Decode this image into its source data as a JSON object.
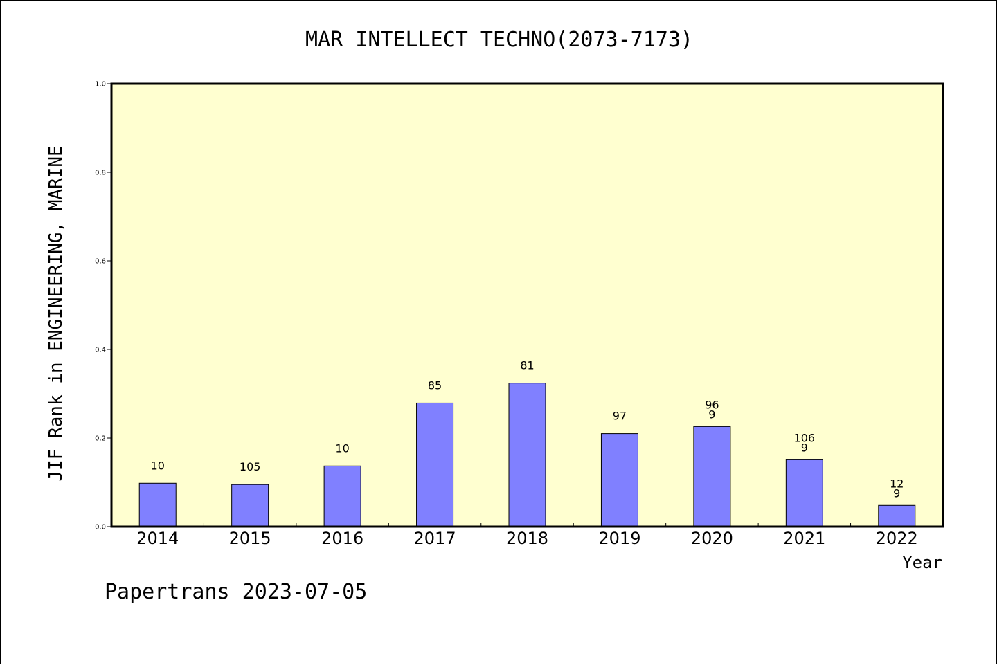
{
  "chart_data": {
    "type": "bar",
    "title": "MAR INTELLECT TECHNO(2073-7173)",
    "xlabel": "Year",
    "ylabel": "JIF Rank in ENGINEERING, MARINE",
    "categories": [
      "2014",
      "2015",
      "2016",
      "2017",
      "2018",
      "2019",
      "2020",
      "2021",
      "2022"
    ],
    "values": [
      0.098,
      0.095,
      0.137,
      0.279,
      0.324,
      0.21,
      0.226,
      0.151,
      0.048
    ],
    "data_labels": [
      [
        "10"
      ],
      [
        "105"
      ],
      [
        "10"
      ],
      [
        "85"
      ],
      [
        "81"
      ],
      [
        "97"
      ],
      [
        "96",
        "9"
      ],
      [
        "106",
        "9"
      ],
      [
        "12",
        "9"
      ]
    ],
    "ylim": [
      0,
      1.0
    ],
    "yticks": [
      "0.0",
      "0.2",
      "0.4",
      "0.6",
      "0.8",
      "1.0"
    ],
    "bar_color": "#8080ff",
    "plot_bg": "#ffffd0",
    "grid": false,
    "legend": "none"
  },
  "footer": "Papertrans 2023-07-05"
}
